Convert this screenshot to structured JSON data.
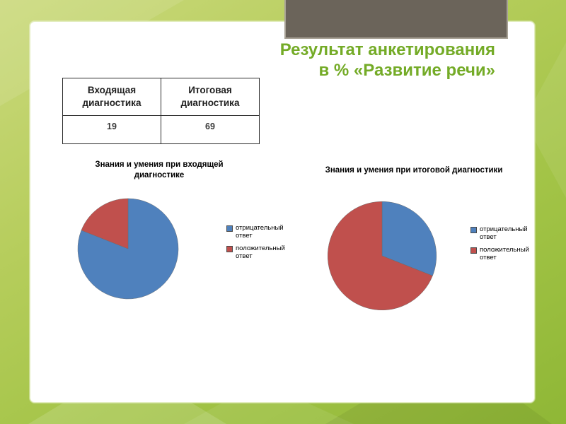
{
  "slide": {
    "title_line1": "Результат анкетирования",
    "title_line2": "в % «Развитие речи»"
  },
  "chart_data": [
    {
      "type": "table",
      "columns": [
        "Входящая диагностика",
        "Итоговая диагностика"
      ],
      "rows": [
        [
          "19",
          "69"
        ]
      ]
    },
    {
      "type": "pie",
      "title": "Знания и умения при входящей диагностике",
      "labels": [
        "отрицательный ответ",
        "положительный ответ"
      ],
      "values": [
        81,
        19
      ],
      "colors": [
        "#4f81bd",
        "#c0504d"
      ],
      "legend_position": "right"
    },
    {
      "type": "pie",
      "title": "Знания и умения при итоговой диагностики",
      "labels": [
        "отрицательный ответ",
        "положительный ответ"
      ],
      "values": [
        31,
        69
      ],
      "colors": [
        "#4f81bd",
        "#c0504d"
      ],
      "legend_position": "right"
    }
  ],
  "colors": {
    "title_green": "#74ab27",
    "accent_bar": "#6b645a",
    "pie_blue": "#4f81bd",
    "pie_red": "#c0504d",
    "background_green": "#a3c447"
  }
}
